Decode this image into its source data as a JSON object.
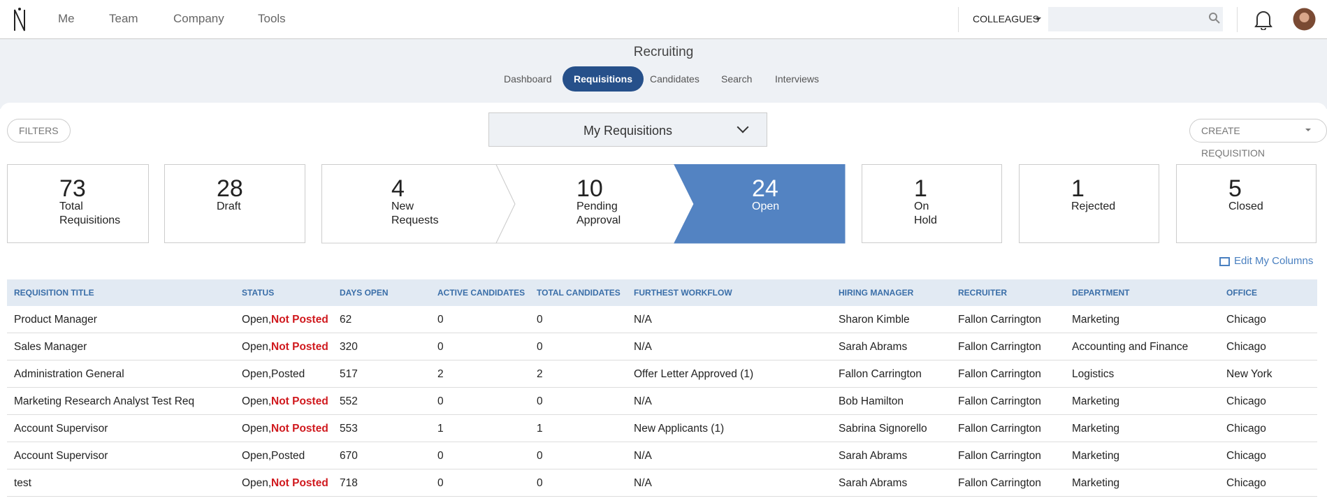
{
  "nav": {
    "items": [
      "Me",
      "Team",
      "Company",
      "Tools"
    ],
    "colleagues": "COLLEAGUES"
  },
  "section": {
    "title": "Recruiting",
    "tabs": [
      "Dashboard",
      "Requisitions",
      "Candidates",
      "Search",
      "Interviews"
    ],
    "active_tab": 1
  },
  "toolbar": {
    "filters": "FILTERS",
    "view": "My Requisitions",
    "create": "CREATE REQUISITION"
  },
  "stats": [
    {
      "count": 73,
      "label": "Total Requisitions"
    },
    {
      "count": 28,
      "label": "Draft"
    },
    {
      "count": 4,
      "label": "New Requests"
    },
    {
      "count": 10,
      "label": "Pending Approval"
    },
    {
      "count": 24,
      "label": "Open",
      "active": true
    },
    {
      "count": 1,
      "label": "On Hold"
    },
    {
      "count": 1,
      "label": "Rejected"
    },
    {
      "count": 5,
      "label": "Closed"
    }
  ],
  "edit_columns": "Edit My Columns",
  "table": {
    "headers": [
      "REQUISITION TITLE",
      "STATUS",
      "DAYS OPEN",
      "ACTIVE CANDIDATES",
      "TOTAL CANDIDATES",
      "FURTHEST WORKFLOW",
      "HIRING MANAGER",
      "RECRUITER",
      "DEPARTMENT",
      "OFFICE"
    ],
    "rows": [
      {
        "title": "Product Manager",
        "state": "Open,",
        "posting": "Not Posted",
        "alert": true,
        "days": 62,
        "active": 0,
        "total": 0,
        "workflow": "N/A",
        "manager": "Sharon Kimble",
        "recruiter": "Fallon Carrington",
        "department": "Marketing",
        "office": "Chicago"
      },
      {
        "title": "Sales Manager",
        "state": "Open,",
        "posting": "Not Posted",
        "alert": true,
        "days": 320,
        "active": 0,
        "total": 0,
        "workflow": "N/A",
        "manager": "Sarah Abrams",
        "recruiter": "Fallon Carrington",
        "department": "Accounting and Finance",
        "office": "Chicago"
      },
      {
        "title": "Administration General",
        "state": "Open,",
        "posting": "Posted",
        "alert": false,
        "days": 517,
        "active": 2,
        "total": 2,
        "workflow": "Offer Letter Approved (1)",
        "manager": "Fallon Carrington",
        "recruiter": "Fallon Carrington",
        "department": "Logistics",
        "office": "New York"
      },
      {
        "title": "Marketing Research Analyst Test Req",
        "state": "Open,",
        "posting": "Not Posted",
        "alert": true,
        "days": 552,
        "active": 0,
        "total": 0,
        "workflow": "N/A",
        "manager": "Bob Hamilton",
        "recruiter": "Fallon Carrington",
        "department": "Marketing",
        "office": "Chicago"
      },
      {
        "title": "Account Supervisor",
        "state": "Open,",
        "posting": "Not Posted",
        "alert": true,
        "days": 553,
        "active": 1,
        "total": 1,
        "workflow": "New Applicants (1)",
        "manager": "Sabrina Signorello",
        "recruiter": "Fallon Carrington",
        "department": "Marketing",
        "office": "Chicago"
      },
      {
        "title": "Account Supervisor",
        "state": "Open,",
        "posting": "Posted",
        "alert": false,
        "days": 670,
        "active": 0,
        "total": 0,
        "workflow": "N/A",
        "manager": "Sarah Abrams",
        "recruiter": "Fallon Carrington",
        "department": "Marketing",
        "office": "Chicago"
      },
      {
        "title": "test",
        "state": "Open,",
        "posting": "Not Posted",
        "alert": true,
        "days": 718,
        "active": 0,
        "total": 0,
        "workflow": "N/A",
        "manager": "Sarah Abrams",
        "recruiter": "Fallon Carrington",
        "department": "Marketing",
        "office": "Chicago"
      }
    ]
  }
}
